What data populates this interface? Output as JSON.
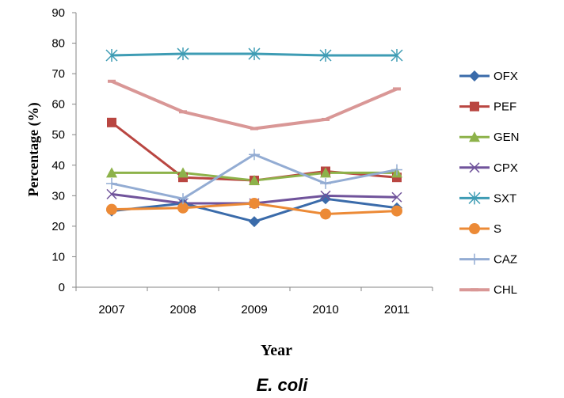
{
  "chart_data": {
    "type": "line",
    "title": "",
    "caption": "E. coli",
    "xlabel": "Year",
    "ylabel": "Percentage (%)",
    "categories": [
      "2007",
      "2008",
      "2009",
      "2010",
      "2011"
    ],
    "ylim": [
      0,
      90
    ],
    "yticks": [
      "0",
      "10",
      "20",
      "30",
      "40",
      "50",
      "60",
      "70",
      "80",
      "90"
    ],
    "grid": false,
    "legend_position": "right",
    "series": [
      {
        "name": "OFX",
        "color": "#3A6BAA",
        "marker": "diamond",
        "values": [
          25,
          27.5,
          21.5,
          29,
          26
        ]
      },
      {
        "name": "PEF",
        "color": "#B94641",
        "marker": "square",
        "values": [
          54,
          36,
          35,
          38,
          36
        ]
      },
      {
        "name": "GEN",
        "color": "#8DB24A",
        "marker": "triangle",
        "values": [
          37.5,
          37.5,
          35,
          37.5,
          37.5
        ]
      },
      {
        "name": "CPX",
        "color": "#70539B",
        "marker": "x",
        "values": [
          30.5,
          27.5,
          27.5,
          30,
          29.5
        ]
      },
      {
        "name": "SXT",
        "color": "#3E9CB4",
        "marker": "star",
        "values": [
          76,
          76.5,
          76.5,
          76,
          76
        ]
      },
      {
        "name": "S",
        "color": "#EC8A36",
        "marker": "circle",
        "values": [
          25.5,
          26,
          27.5,
          24,
          25
        ]
      },
      {
        "name": "CAZ",
        "color": "#93ACD3",
        "marker": "plus",
        "values": [
          34,
          29,
          43.5,
          34,
          38.5
        ]
      },
      {
        "name": "CHL",
        "color": "#D99796",
        "marker": "dash",
        "values": [
          67.5,
          57.5,
          52,
          55,
          65
        ]
      }
    ]
  }
}
